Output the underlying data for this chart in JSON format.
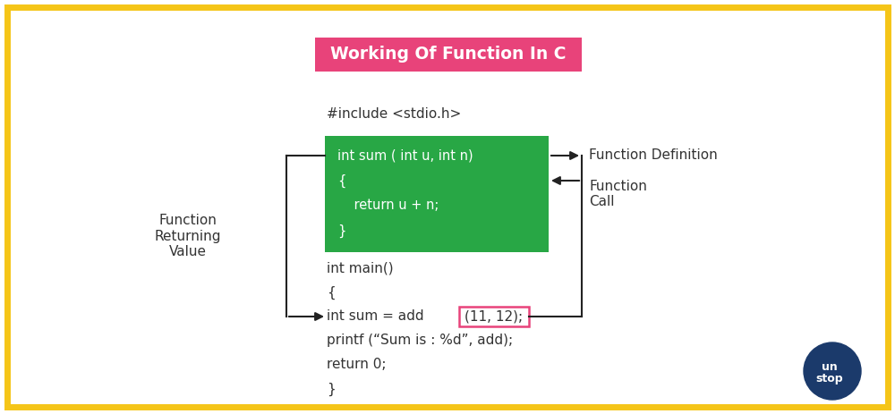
{
  "bg_color": "#ffffff",
  "border_color": "#f5c518",
  "title_text": "Working Of Function In C",
  "title_bg": "#e8437a",
  "title_text_color": "#ffffff",
  "green_box_color": "#28a745",
  "green_box_text_color": "#ffffff",
  "green_box_lines": [
    "int sum ( int u, int n)",
    "{",
    "    return u + n;",
    "}"
  ],
  "include_text": "#include <stdio.h>",
  "label_function_def": "Function Definition",
  "label_function_call": "Function\nCall",
  "label_returning": "Function\nReturning\nValue",
  "code_color": "#333333",
  "arrow_color": "#222222",
  "highlight_box_color": "#e8437a",
  "unstop_circle_color": "#1b3a6b",
  "unstop_text_color": "#ffffff",
  "main_code_line1": "int main()",
  "main_code_line2": "{",
  "main_code_line3a": "int sum = add ",
  "main_code_line3b": "(11, 12);",
  "main_code_line4": "printf (“Sum is : %d”, add);",
  "main_code_line5": "return 0;",
  "main_code_line6": "}"
}
